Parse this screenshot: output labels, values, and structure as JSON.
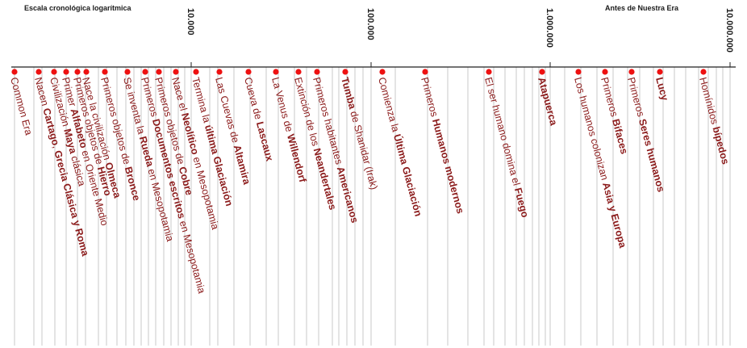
{
  "header": {
    "scale_title": "Escala cronológica logarítmica",
    "era_label": "Antes de Nuestra Era"
  },
  "axis": {
    "scale": "log",
    "major_ticks": [
      {
        "value": 10000,
        "label": "10.000"
      },
      {
        "value": 100000,
        "label": "100.000"
      },
      {
        "value": 1000000,
        "label": "1.000.000"
      },
      {
        "value": 10000000,
        "label": "10.000.000"
      }
    ]
  },
  "events": [
    {
      "id": "common-era",
      "parts": [
        [
          "Common Era",
          false
        ]
      ],
      "color": "#8b1a1a"
    },
    {
      "id": "cartago",
      "parts": [
        [
          "Nacen ",
          false
        ],
        [
          "Cartago",
          true
        ],
        [
          ", ",
          false
        ],
        [
          "Grecia Clásica y Roma",
          true
        ]
      ],
      "color": "#8b1a1a"
    },
    {
      "id": "maya",
      "parts": [
        [
          "Civilización ",
          false
        ],
        [
          "Maya",
          true
        ],
        [
          " clásica",
          false
        ]
      ],
      "color": "#8b1a1a"
    },
    {
      "id": "alfabeto",
      "parts": [
        [
          "Primer ",
          false
        ],
        [
          "Alfabeto",
          true
        ],
        [
          " en Oriente Medio",
          false
        ]
      ],
      "color": "#8b1a1a"
    },
    {
      "id": "hierro",
      "parts": [
        [
          "Primeros objetos de ",
          false
        ],
        [
          "Hierro",
          true
        ]
      ],
      "color": "#8b1a1a"
    },
    {
      "id": "olmeca",
      "parts": [
        [
          "Nace la civilización ",
          false
        ],
        [
          "Olmeca",
          true
        ]
      ],
      "color": "#8b1a1a"
    },
    {
      "id": "bronce",
      "parts": [
        [
          "Primeros objetos de ",
          false
        ],
        [
          "Bronce",
          true
        ]
      ],
      "color": "#8b1a1a"
    },
    {
      "id": "rueda",
      "parts": [
        [
          "Se inventa la ",
          false
        ],
        [
          "Rueda",
          true
        ],
        [
          " en Mesopotamia",
          false
        ]
      ],
      "color": "#8b1a1a"
    },
    {
      "id": "documentos",
      "parts": [
        [
          "Primeros ",
          false
        ],
        [
          "Documentos escritos",
          true
        ],
        [
          " en Mesopotamia",
          false
        ]
      ],
      "color": "#8b1a1a"
    },
    {
      "id": "cobre",
      "parts": [
        [
          "Primeros objetos de ",
          false
        ],
        [
          "Cobre",
          true
        ]
      ],
      "color": "#8b1a1a"
    },
    {
      "id": "neolitico",
      "parts": [
        [
          "Nace el ",
          false
        ],
        [
          "Neolítico",
          true
        ],
        [
          " en Mesopotamia",
          false
        ]
      ],
      "color": "#8b1a1a"
    },
    {
      "id": "ultima-glaciacion-fin",
      "parts": [
        [
          "Termina la ",
          false
        ],
        [
          "última Glaciación",
          true
        ]
      ],
      "color": "#8b1a1a"
    },
    {
      "id": "altamira",
      "parts": [
        [
          "Las Cuevas de ",
          false
        ],
        [
          "Altamira",
          true
        ]
      ],
      "color": "#8b1a1a"
    },
    {
      "id": "lascaux",
      "parts": [
        [
          "Cueva de ",
          false
        ],
        [
          "Lascaux",
          true
        ]
      ],
      "color": "#8b1a1a"
    },
    {
      "id": "willendorf",
      "parts": [
        [
          "La Venus de ",
          false
        ],
        [
          "Willendorf",
          true
        ]
      ],
      "color": "#8b1a1a"
    },
    {
      "id": "neandertales",
      "parts": [
        [
          "Extinción de los ",
          false
        ],
        [
          "Neandertales",
          true
        ]
      ],
      "color": "#8b1a1a"
    },
    {
      "id": "americanos",
      "parts": [
        [
          "Primeros habitantes ",
          false
        ],
        [
          "Americanos",
          true
        ]
      ],
      "color": "#8b1a1a"
    },
    {
      "id": "shanidar",
      "parts": [
        [
          "Tumba",
          true
        ],
        [
          " de Shanidar (Irak)",
          false
        ]
      ],
      "color": "#8b1a1a"
    },
    {
      "id": "ultima-glaciacion-inicio",
      "parts": [
        [
          "Comienza la ",
          false
        ],
        [
          "Última Glaciación",
          true
        ]
      ],
      "color": "#8b1a1a"
    },
    {
      "id": "humanos-modernos",
      "parts": [
        [
          "Primeros ",
          false
        ],
        [
          "Humanos modernos",
          true
        ]
      ],
      "color": "#8b1a1a"
    },
    {
      "id": "fuego",
      "parts": [
        [
          "El ser humano domina el ",
          false
        ],
        [
          "Fuego",
          true
        ]
      ],
      "color": "#8b1a1a"
    },
    {
      "id": "atapuerca",
      "parts": [
        [
          "Atapuerca",
          true
        ]
      ],
      "color": "#8b1a1a"
    },
    {
      "id": "asia-europa",
      "parts": [
        [
          "Los humanos colonizan ",
          false
        ],
        [
          "Asia y Europa",
          true
        ]
      ],
      "color": "#8b1a1a"
    },
    {
      "id": "bifaces",
      "parts": [
        [
          "Primeros ",
          false
        ],
        [
          "Bifaces",
          true
        ]
      ],
      "color": "#8b1a1a"
    },
    {
      "id": "seres-humanos",
      "parts": [
        [
          "Primeros ",
          false
        ],
        [
          "Seres humanos",
          true
        ]
      ],
      "color": "#8b1a1a"
    },
    {
      "id": "lucy",
      "parts": [
        [
          "Lucy",
          true
        ]
      ],
      "color": "#8b1a1a"
    },
    {
      "id": "bipedos",
      "parts": [
        [
          "Homínidos ",
          false
        ],
        [
          "bípedos",
          true
        ]
      ],
      "color": "#8b1a1a"
    }
  ],
  "colors": {
    "dot": "#ee1111",
    "label": "#8b1a1a",
    "grid": "#c9c9c9",
    "axis": "#222222"
  }
}
